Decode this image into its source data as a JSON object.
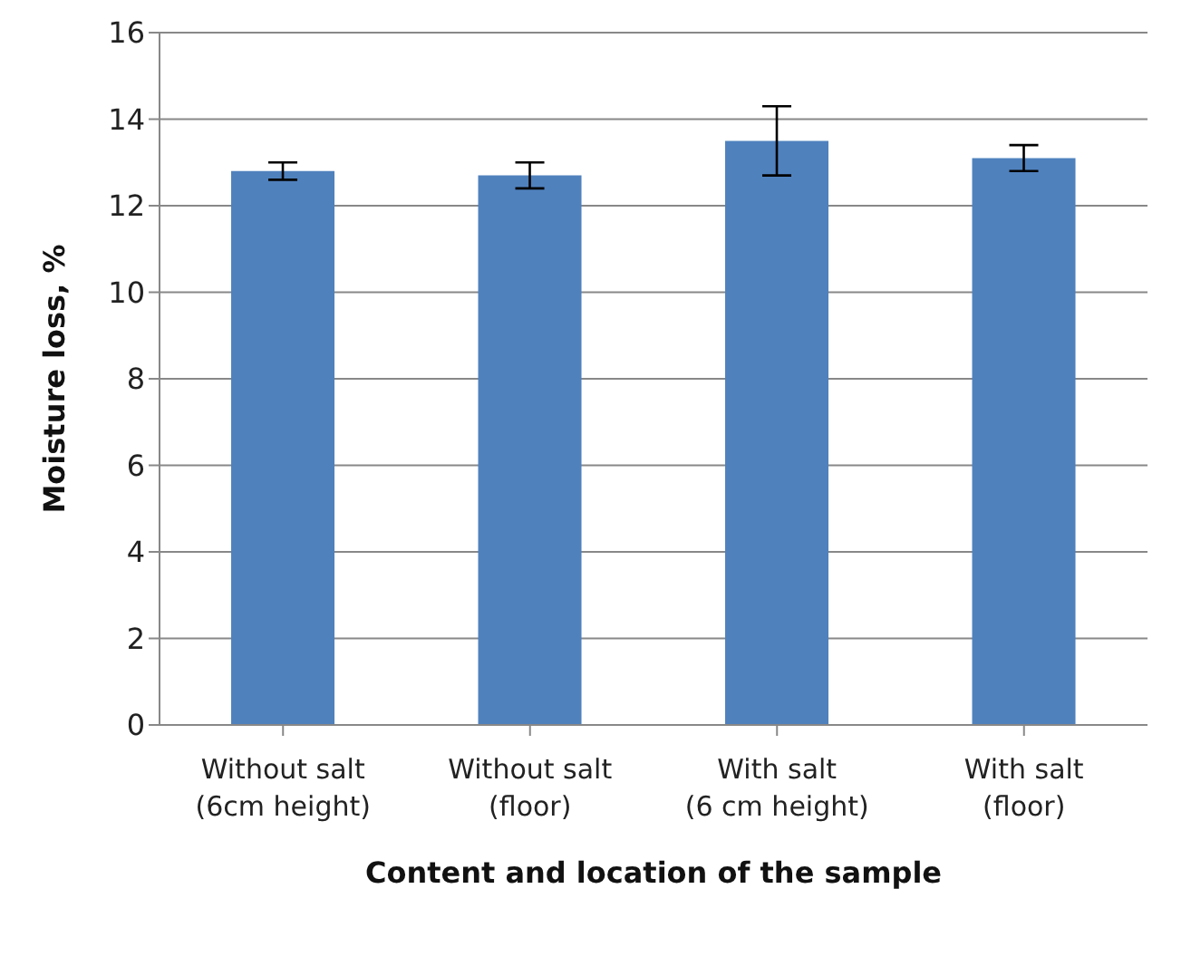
{
  "chart_data": {
    "type": "bar",
    "xlabel": "Content and location of the sample",
    "ylabel": "Moisture loss, %",
    "categories": [
      "Without salt\n(6cm height)",
      "Without salt\n(floor)",
      "With salt\n(6 cm height)",
      "With salt\n(floor)"
    ],
    "values": [
      12.8,
      12.7,
      13.5,
      13.1
    ],
    "errors": [
      0.2,
      0.3,
      0.8,
      0.3
    ],
    "color": "#4f81bd",
    "ylim": [
      0,
      16
    ],
    "yticks": [
      0,
      2,
      4,
      6,
      8,
      10,
      12,
      14,
      16
    ],
    "grid": "y"
  }
}
